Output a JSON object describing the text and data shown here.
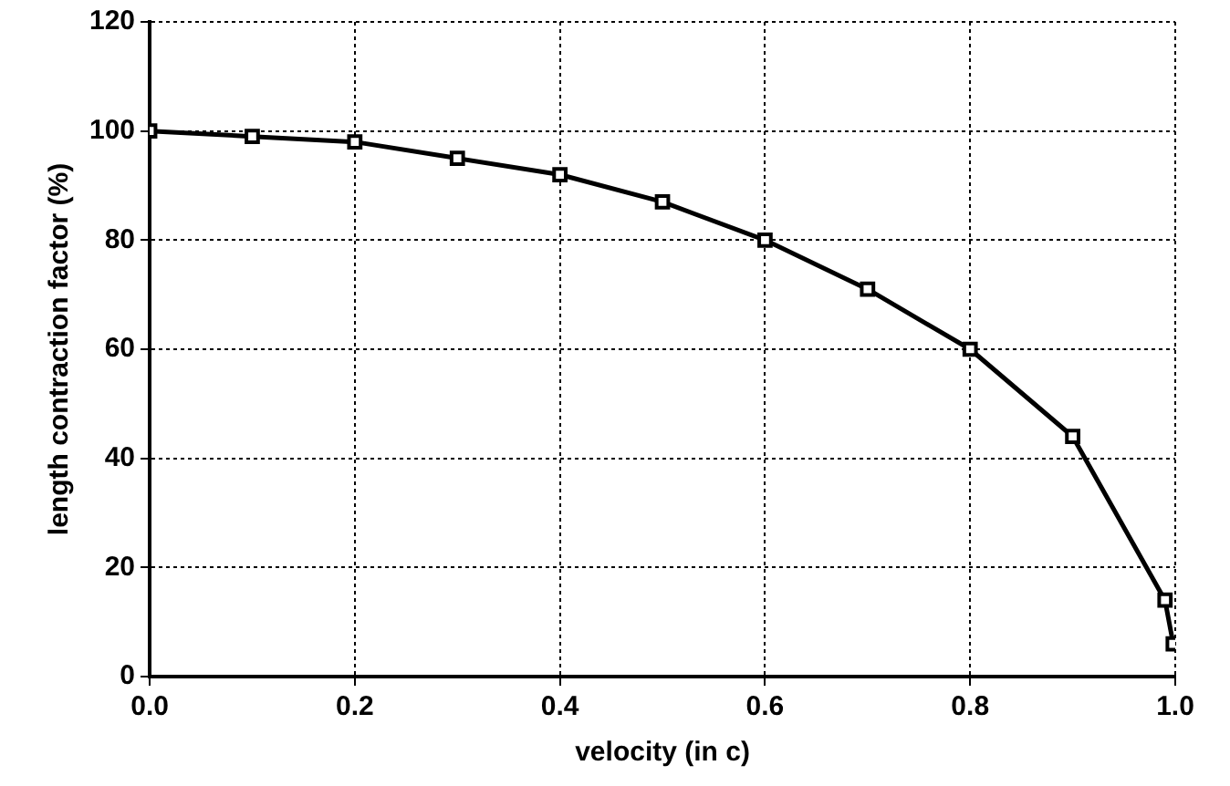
{
  "chart_data": {
    "type": "line",
    "xlabel": "velocity (in c)",
    "ylabel": "length contraction factor (%)",
    "x": [
      0,
      0.1,
      0.2,
      0.3,
      0.4,
      0.5,
      0.6,
      0.7,
      0.8,
      0.9,
      0.99,
      0.998
    ],
    "series": [
      {
        "color": "#000000",
        "values": [
          100,
          99,
          98,
          95,
          92,
          87,
          80,
          71,
          60,
          44,
          14,
          6
        ]
      }
    ],
    "xlim": [
      0,
      1
    ],
    "xticks": [
      {
        "value": 0,
        "label": "0.0"
      },
      {
        "value": 0.2,
        "label": "0.2"
      },
      {
        "value": 0.4,
        "label": "0.4"
      },
      {
        "value": 0.6,
        "label": "0.6"
      },
      {
        "value": 0.8,
        "label": "0.8"
      },
      {
        "value": 1,
        "label": "1.0"
      }
    ],
    "ylim": [
      0,
      120
    ],
    "yticks": [
      0,
      20,
      40,
      60,
      80,
      100,
      120
    ],
    "grid": true,
    "legend": false,
    "marker": "square",
    "line_style": "solid"
  }
}
